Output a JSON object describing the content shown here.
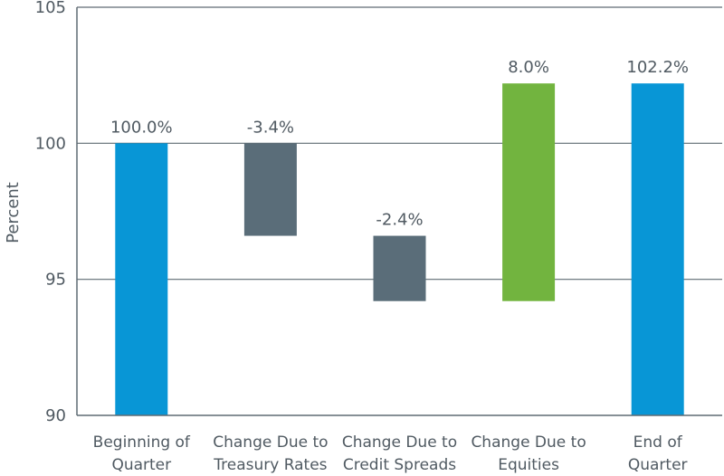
{
  "chart_data": {
    "type": "bar",
    "subtype": "waterfall",
    "ylabel": "Percent",
    "ylim": [
      90,
      105
    ],
    "yticks": [
      "90",
      "95",
      "100",
      "105"
    ],
    "grid": true,
    "categories": [
      [
        "Beginning of",
        "Quarter"
      ],
      [
        "Change Due to",
        "Treasury Rates"
      ],
      [
        "Change Due to",
        "Credit Spreads"
      ],
      [
        "Change Due to",
        "Equities"
      ],
      [
        "End of",
        "Quarter"
      ]
    ],
    "bars": [
      {
        "start": 90,
        "end": 100.0,
        "label": "100.0%",
        "color": "#0896d6"
      },
      {
        "start": 100.0,
        "end": 96.6,
        "label": "-3.4%",
        "color": "#5a6d79"
      },
      {
        "start": 96.6,
        "end": 94.2,
        "label": "-2.4%",
        "color": "#5a6d79"
      },
      {
        "start": 94.2,
        "end": 102.2,
        "label": "8.0%",
        "color": "#72b43f"
      },
      {
        "start": 90,
        "end": 102.2,
        "label": "102.2%",
        "color": "#0896d6"
      }
    ]
  }
}
